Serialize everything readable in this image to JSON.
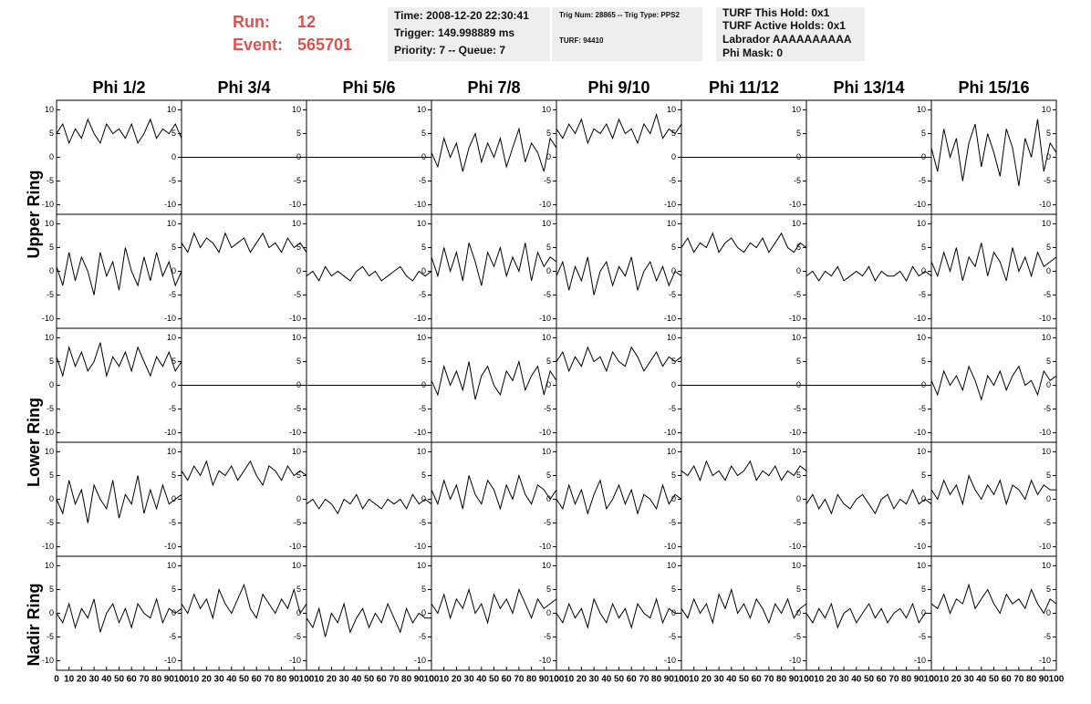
{
  "header": {
    "run_label": "Run:",
    "run": "12",
    "event_label": "Event:",
    "event": "565701",
    "boxes": [
      [
        "Time: 2008-12-20 22:30:41",
        "Trigger: 149.998889 ms",
        "Priority: 7 -- Queue: 7"
      ],
      [
        "Trig Num: 28865 -- Trig Type: PPS2",
        "TURF: 94410"
      ],
      [
        "TURF This Hold: 0x1",
        "TURF Active Holds: 0x1",
        "Labrador AAAAAAAAAA",
        "Phi Mask: 0"
      ]
    ]
  },
  "chart_data": {
    "type": "line",
    "columns": [
      "Phi 1/2",
      "Phi 3/4",
      "Phi 5/6",
      "Phi 7/8",
      "Phi 9/10",
      "Phi 11/12",
      "Phi 13/14",
      "Phi 15/16"
    ],
    "row_labels": [
      "Upper Ring",
      "Lower Ring",
      "Nadir Ring"
    ],
    "xlim": [
      0,
      100
    ],
    "xticks": [
      0,
      10,
      20,
      30,
      40,
      50,
      60,
      70,
      80,
      90,
      100
    ],
    "ylim": [
      -12,
      12
    ],
    "yticks": [
      -10,
      -5,
      0,
      5,
      10
    ],
    "x": [
      0,
      5,
      10,
      15,
      20,
      25,
      30,
      35,
      40,
      45,
      50,
      55,
      60,
      65,
      70,
      75,
      80,
      85,
      90,
      95,
      100
    ],
    "panels": [
      [
        [
          5,
          7,
          3,
          6,
          4,
          8,
          5,
          3,
          7,
          5,
          6,
          4,
          7,
          3,
          5,
          8,
          4,
          6,
          5,
          7,
          4
        ],
        [
          0,
          0,
          0,
          0,
          0,
          0,
          0,
          0,
          0,
          0,
          0,
          0,
          0,
          0,
          0,
          0,
          0,
          0,
          0,
          0,
          0
        ],
        [
          0,
          0,
          0,
          0,
          0,
          0,
          0,
          0,
          0,
          0,
          0,
          0,
          0,
          0,
          0,
          0,
          0,
          0,
          0,
          0,
          0
        ],
        [
          1,
          -2,
          4,
          0,
          3,
          -3,
          2,
          5,
          -1,
          3,
          0,
          4,
          -2,
          2,
          6,
          -1,
          3,
          1,
          -3,
          4,
          2
        ],
        [
          6,
          4,
          7,
          5,
          8,
          3,
          6,
          5,
          7,
          4,
          8,
          5,
          6,
          3,
          7,
          5,
          9,
          4,
          6,
          5,
          7
        ],
        [
          0,
          0,
          0,
          0,
          0,
          0,
          0,
          0,
          0,
          0,
          0,
          0,
          0,
          0,
          0,
          0,
          0,
          0,
          0,
          0,
          0
        ],
        [
          0,
          0,
          0,
          0,
          0,
          0,
          0,
          0,
          0,
          0,
          0,
          0,
          0,
          0,
          0,
          0,
          0,
          0,
          0,
          0,
          0
        ],
        [
          2,
          -3,
          6,
          0,
          4,
          -5,
          3,
          7,
          -2,
          5,
          1,
          -4,
          6,
          2,
          -6,
          4,
          0,
          8,
          -3,
          3,
          1
        ]
      ],
      [
        [
          1,
          -3,
          4,
          -2,
          3,
          0,
          -5,
          4,
          -1,
          2,
          -4,
          5,
          0,
          -3,
          3,
          -2,
          4,
          -1,
          2,
          -3,
          0
        ],
        [
          6,
          4,
          8,
          5,
          7,
          6,
          4,
          8,
          5,
          6,
          7,
          4,
          6,
          8,
          5,
          6,
          4,
          7,
          5,
          6,
          4
        ],
        [
          -1,
          0,
          -2,
          1,
          -1,
          0,
          -1,
          -2,
          0,
          1,
          -1,
          0,
          -2,
          -1,
          0,
          1,
          -1,
          -2,
          0,
          -1,
          0
        ],
        [
          3,
          -1,
          5,
          0,
          4,
          -2,
          6,
          2,
          -3,
          4,
          1,
          5,
          -1,
          3,
          0,
          6,
          -2,
          4,
          1,
          3,
          2
        ],
        [
          -1,
          2,
          -4,
          1,
          -2,
          3,
          -5,
          0,
          2,
          -3,
          1,
          -1,
          3,
          -4,
          0,
          2,
          -2,
          1,
          -3,
          0,
          -1
        ],
        [
          5,
          7,
          4,
          6,
          5,
          8,
          4,
          6,
          7,
          5,
          4,
          6,
          5,
          7,
          4,
          6,
          8,
          5,
          4,
          6,
          5
        ],
        [
          -1,
          0,
          -2,
          0,
          -1,
          1,
          -2,
          -1,
          0,
          -1,
          1,
          -2,
          0,
          -1,
          -1,
          0,
          -2,
          1,
          -1,
          0,
          -1
        ],
        [
          2,
          -1,
          4,
          0,
          5,
          -2,
          3,
          1,
          6,
          -1,
          4,
          2,
          -2,
          5,
          0,
          3,
          -1,
          4,
          1,
          2,
          3
        ]
      ],
      [
        [
          6,
          2,
          8,
          4,
          7,
          3,
          5,
          9,
          2,
          6,
          4,
          7,
          3,
          8,
          5,
          2,
          6,
          4,
          7,
          3,
          5
        ],
        [
          0,
          0,
          0,
          0,
          0,
          0,
          0,
          0,
          0,
          0,
          0,
          0,
          0,
          0,
          0,
          0,
          0,
          0,
          0,
          0,
          0
        ],
        [
          0,
          0,
          0,
          0,
          0,
          0,
          0,
          0,
          0,
          0,
          0,
          0,
          0,
          0,
          0,
          0,
          0,
          0,
          0,
          0,
          0
        ],
        [
          1,
          -2,
          4,
          0,
          3,
          -1,
          5,
          -3,
          2,
          4,
          0,
          -2,
          3,
          1,
          5,
          -1,
          2,
          4,
          -2,
          3,
          1
        ],
        [
          5,
          7,
          3,
          6,
          4,
          8,
          5,
          6,
          3,
          7,
          5,
          4,
          8,
          6,
          3,
          5,
          7,
          4,
          6,
          5,
          6
        ],
        [
          0,
          0,
          0,
          0,
          0,
          0,
          0,
          0,
          0,
          0,
          0,
          0,
          0,
          0,
          0,
          0,
          0,
          0,
          0,
          0,
          0
        ],
        [
          0,
          0,
          0,
          0,
          0,
          0,
          0,
          0,
          0,
          0,
          0,
          0,
          0,
          0,
          0,
          0,
          0,
          0,
          0,
          0,
          0
        ],
        [
          1,
          -2,
          3,
          0,
          2,
          -1,
          4,
          1,
          -3,
          2,
          0,
          3,
          -1,
          2,
          4,
          0,
          1,
          -2,
          3,
          1,
          2
        ]
      ],
      [
        [
          0,
          -3,
          4,
          -1,
          2,
          -5,
          3,
          0,
          -2,
          4,
          -4,
          1,
          -1,
          5,
          -3,
          2,
          -2,
          3,
          -1,
          0,
          1
        ],
        [
          6,
          4,
          7,
          5,
          8,
          3,
          6,
          5,
          7,
          4,
          6,
          8,
          5,
          3,
          7,
          6,
          4,
          7,
          5,
          6,
          5
        ],
        [
          -1,
          0,
          -2,
          0,
          -1,
          -3,
          0,
          -1,
          1,
          -2,
          0,
          -1,
          -2,
          0,
          -1,
          0,
          -2,
          1,
          -1,
          0,
          -1
        ],
        [
          2,
          -1,
          4,
          0,
          3,
          -2,
          5,
          1,
          -1,
          4,
          2,
          -2,
          3,
          0,
          5,
          1,
          -1,
          3,
          2,
          0,
          2
        ],
        [
          0,
          -2,
          3,
          -1,
          2,
          -3,
          1,
          4,
          -2,
          0,
          3,
          -1,
          2,
          -3,
          1,
          0,
          -2,
          3,
          -1,
          1,
          0
        ],
        [
          6,
          5,
          7,
          4,
          8,
          5,
          6,
          4,
          7,
          5,
          6,
          8,
          4,
          6,
          5,
          7,
          4,
          6,
          5,
          7,
          6
        ],
        [
          -1,
          1,
          -2,
          0,
          -3,
          1,
          -1,
          -2,
          0,
          1,
          -1,
          -3,
          0,
          1,
          -2,
          0,
          -1,
          2,
          -1,
          0,
          -1
        ],
        [
          2,
          0,
          4,
          1,
          3,
          -1,
          5,
          2,
          0,
          3,
          1,
          4,
          -1,
          3,
          2,
          0,
          4,
          1,
          3,
          2,
          2
        ]
      ],
      [
        [
          0,
          -2,
          2,
          -3,
          1,
          -1,
          3,
          -4,
          0,
          2,
          -2,
          1,
          -3,
          2,
          0,
          -1,
          3,
          -2,
          1,
          0,
          1
        ],
        [
          2,
          0,
          4,
          1,
          3,
          -1,
          5,
          2,
          0,
          3,
          6,
          1,
          -1,
          4,
          2,
          0,
          3,
          1,
          5,
          0,
          2
        ],
        [
          -1,
          -3,
          1,
          -5,
          0,
          -2,
          2,
          -4,
          -1,
          1,
          -3,
          0,
          -2,
          2,
          -1,
          -4,
          1,
          -2,
          0,
          -1,
          -1
        ],
        [
          2,
          0,
          4,
          -1,
          3,
          1,
          5,
          0,
          2,
          -2,
          4,
          1,
          3,
          0,
          5,
          2,
          -1,
          3,
          1,
          2,
          3
        ],
        [
          0,
          -2,
          2,
          -1,
          1,
          -3,
          3,
          0,
          -2,
          2,
          -1,
          1,
          -3,
          2,
          0,
          -1,
          3,
          -2,
          1,
          0,
          0
        ],
        [
          1,
          -1,
          3,
          0,
          2,
          -2,
          4,
          1,
          5,
          0,
          2,
          -1,
          3,
          1,
          -2,
          2,
          0,
          3,
          -1,
          1,
          2
        ],
        [
          0,
          -2,
          1,
          -1,
          2,
          -3,
          0,
          1,
          -2,
          0,
          2,
          -1,
          1,
          -2,
          0,
          1,
          -1,
          2,
          -2,
          0,
          0
        ],
        [
          2,
          1,
          4,
          0,
          3,
          2,
          6,
          1,
          3,
          5,
          2,
          0,
          4,
          2,
          3,
          1,
          5,
          2,
          0,
          3,
          2
        ]
      ]
    ]
  }
}
